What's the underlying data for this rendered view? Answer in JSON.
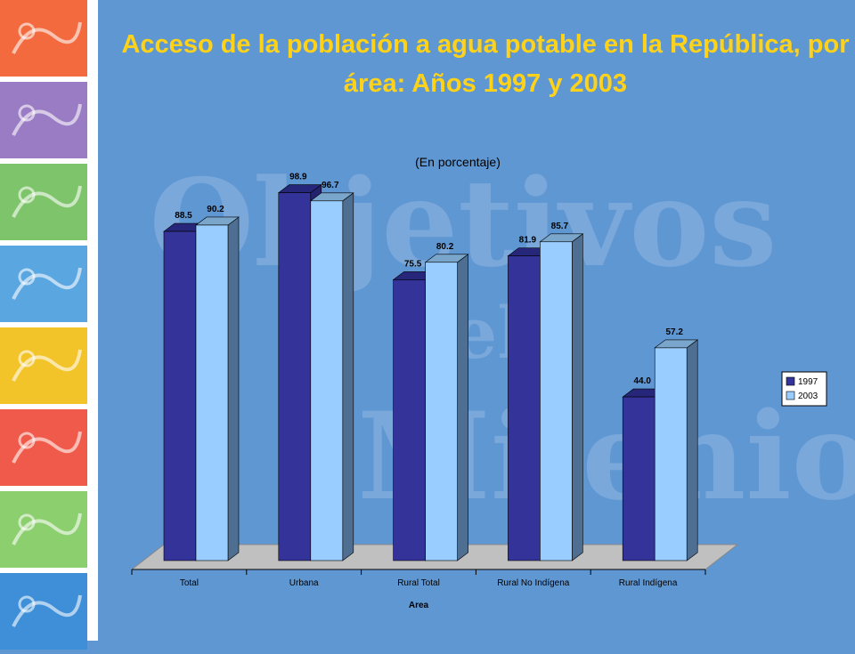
{
  "slide": {
    "title": "Acceso de la población a agua potable en la República, por área: Años 1997 y 2003",
    "watermark_lines": [
      "Objetivos",
      "del",
      "Milenio"
    ]
  },
  "colors": {
    "background": "#5f97d3",
    "title": "#ffd21a",
    "series_1997": "#333399",
    "series_2003": "#99ccff",
    "floor": "#c0c0c0"
  },
  "sidebar_tiles": [
    {
      "color": "#f26a3d",
      "icon": "house-drawing-icon"
    },
    {
      "color": "#9a7cc4",
      "icon": "writing-hand-icon"
    },
    {
      "color": "#7ec46a",
      "icon": "hands-icon"
    },
    {
      "color": "#5aa6e0",
      "icon": "baby-icon"
    },
    {
      "color": "#f2c429",
      "icon": "mother-child-icon"
    },
    {
      "color": "#f05a4a",
      "icon": "health-text-icon"
    },
    {
      "color": "#8ccf6e",
      "icon": "leaf-icon"
    },
    {
      "color": "#3e8fd8",
      "icon": "globe-icon"
    }
  ],
  "chart_data": {
    "type": "bar",
    "subtitle": "(En porcentaje)",
    "xlabel": "Area",
    "ylabel": "",
    "categories": [
      "Total",
      "Urbana",
      "Rural Total",
      "Rural No Indígena",
      "Rural Indígena"
    ],
    "series": [
      {
        "name": "1997",
        "values": [
          88.5,
          98.9,
          75.5,
          81.9,
          44.0
        ],
        "labels": [
          "88.5",
          "98.9",
          "75.5",
          "81.9",
          "44.0"
        ]
      },
      {
        "name": "2003",
        "values": [
          90.2,
          96.7,
          80.2,
          85.7,
          57.2
        ],
        "labels": [
          "90.2",
          "96.7",
          "80.2",
          "85.7",
          "57.2"
        ]
      }
    ],
    "ylim": [
      0,
      100
    ],
    "grid": false,
    "legend": "right",
    "three_d": true
  }
}
